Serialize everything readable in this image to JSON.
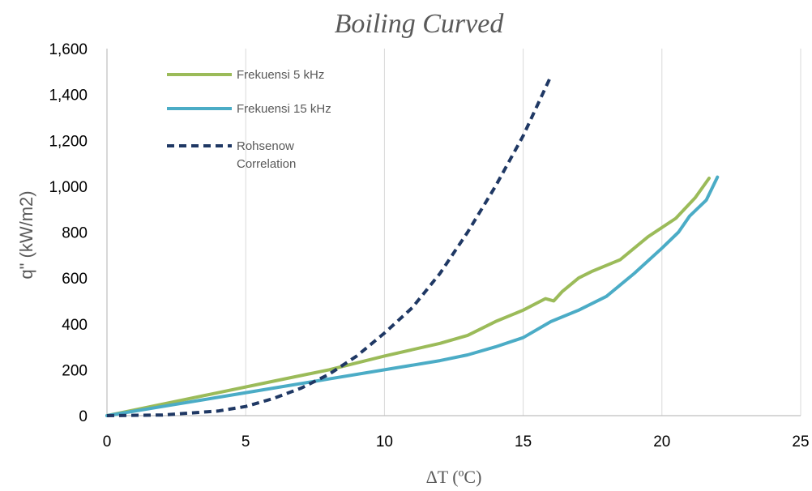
{
  "chart_data": {
    "type": "line",
    "title": "Boiling Curved",
    "xlabel": "ΔT (ºC)",
    "ylabel": "q\" (kW/m2)",
    "xlim": [
      0,
      25
    ],
    "ylim": [
      0,
      1600
    ],
    "x_ticks": [
      "0",
      "5",
      "10",
      "15",
      "20",
      "25"
    ],
    "y_ticks": [
      "0",
      "200",
      "400",
      "600",
      "800",
      "1,000",
      "1,200",
      "1,400",
      "1,600"
    ],
    "grid": "vertical",
    "legend_position": "top-left",
    "series": [
      {
        "name": "Frekuensi 5 kHz",
        "color": "#9bbb59",
        "style": "solid",
        "x": [
          0,
          2,
          4,
          6,
          8,
          10,
          12,
          13,
          14,
          15,
          15.8,
          16.1,
          16.4,
          17,
          17.5,
          18.5,
          19.5,
          20.5,
          21.2,
          21.7
        ],
        "y": [
          0,
          50,
          100,
          150,
          200,
          260,
          315,
          350,
          410,
          460,
          510,
          500,
          540,
          600,
          630,
          680,
          780,
          860,
          950,
          1035
        ]
      },
      {
        "name": "Frekuensi 15 kHz",
        "color": "#4bacc6",
        "style": "solid",
        "x": [
          0,
          2,
          4,
          6,
          8,
          10,
          12,
          13,
          14,
          15,
          16,
          17,
          18,
          19,
          20,
          20.6,
          21,
          21.6,
          22
        ],
        "y": [
          0,
          40,
          80,
          120,
          160,
          200,
          240,
          265,
          300,
          340,
          410,
          460,
          520,
          620,
          730,
          800,
          870,
          940,
          1040
        ]
      },
      {
        "name": "Rohsenow Correlation",
        "color": "#1f3864",
        "style": "dashed",
        "x": [
          0,
          2,
          4,
          5,
          6,
          7,
          8,
          9,
          10,
          11,
          12,
          13,
          14,
          15,
          16
        ],
        "y": [
          0,
          3,
          20,
          40,
          75,
          120,
          180,
          260,
          360,
          470,
          620,
          800,
          1000,
          1220,
          1480
        ]
      }
    ]
  }
}
